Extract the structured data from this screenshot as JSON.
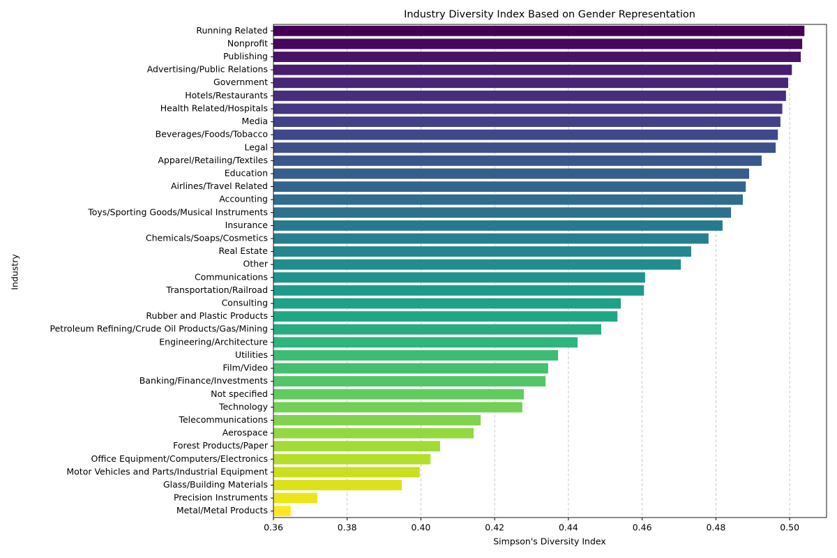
{
  "chart_data": {
    "type": "barh",
    "title": "Industry Diversity Index Based on Gender Representation",
    "xlabel": "Simpson's Diversity Index",
    "ylabel": "Industry",
    "categories": [
      "Running Related",
      "Nonprofit",
      "Publishing",
      "Advertising/Public Relations",
      "Government",
      "Hotels/Restaurants",
      "Health Related/Hospitals",
      "Media",
      "Beverages/Foods/Tobacco",
      "Legal",
      "Apparel/Retailing/Textiles",
      "Education",
      "Airlines/Travel Related",
      "Accounting",
      "Toys/Sporting Goods/Musical Instruments",
      "Insurance",
      "Chemicals/Soaps/Cosmetics",
      "Real Estate",
      "Other",
      "Communications",
      "Transportation/Railroad",
      "Consulting",
      "Rubber and Plastic Products",
      "Petroleum Refining/Crude Oil Products/Gas/Mining",
      "Engineering/Architecture",
      "Utilities",
      "Film/Video",
      "Banking/Finance/Investments",
      "Not specified",
      "Technology",
      "Telecommunications",
      "Aerospace",
      "Forest Products/Paper",
      "Office Equipment/Computers/Electronics",
      "Motor Vehicles and Parts/Industrial Equipment",
      "Glass/Building Materials",
      "Precision Instruments",
      "Metal/Metal Products"
    ],
    "values": [
      0.504,
      0.5034,
      0.503,
      0.5006,
      0.4996,
      0.499,
      0.498,
      0.4975,
      0.4968,
      0.4962,
      0.4924,
      0.489,
      0.4881,
      0.4873,
      0.4841,
      0.4818,
      0.478,
      0.4733,
      0.4705,
      0.4608,
      0.4605,
      0.4542,
      0.4533,
      0.4489,
      0.4425,
      0.4372,
      0.4345,
      0.4338,
      0.4279,
      0.4275,
      0.4162,
      0.4143,
      0.4052,
      0.4026,
      0.3997,
      0.3948,
      0.3719,
      0.3647
    ],
    "colors": [
      "#440154",
      "#46085c",
      "#471466",
      "#481d6f",
      "#482576",
      "#472e7c",
      "#453781",
      "#424086",
      "#3f4889",
      "#3c508b",
      "#39568c",
      "#355e8d",
      "#32658e",
      "#2f6c8e",
      "#2c728e",
      "#29798e",
      "#277f8e",
      "#24868e",
      "#228d8d",
      "#20938c",
      "#1f9a8a",
      "#1fa088",
      "#21a685",
      "#27ad81",
      "#2fb47c",
      "#3dbc74",
      "#45bf6f",
      "#54c568",
      "#62cb5f",
      "#73d056",
      "#80d34e",
      "#93d741",
      "#a2da37",
      "#b4de2c",
      "#c8e020",
      "#dbe21b",
      "#ebe51b",
      "#fde725"
    ],
    "xlim": [
      0.36,
      0.51
    ],
    "xticks": [
      0.36,
      0.38,
      {
        "value": 0.4,
        "label": "0.40"
      },
      0.42,
      0.44,
      0.46,
      0.48,
      {
        "value": 0.5,
        "label": "0.50"
      }
    ],
    "grid": true
  }
}
